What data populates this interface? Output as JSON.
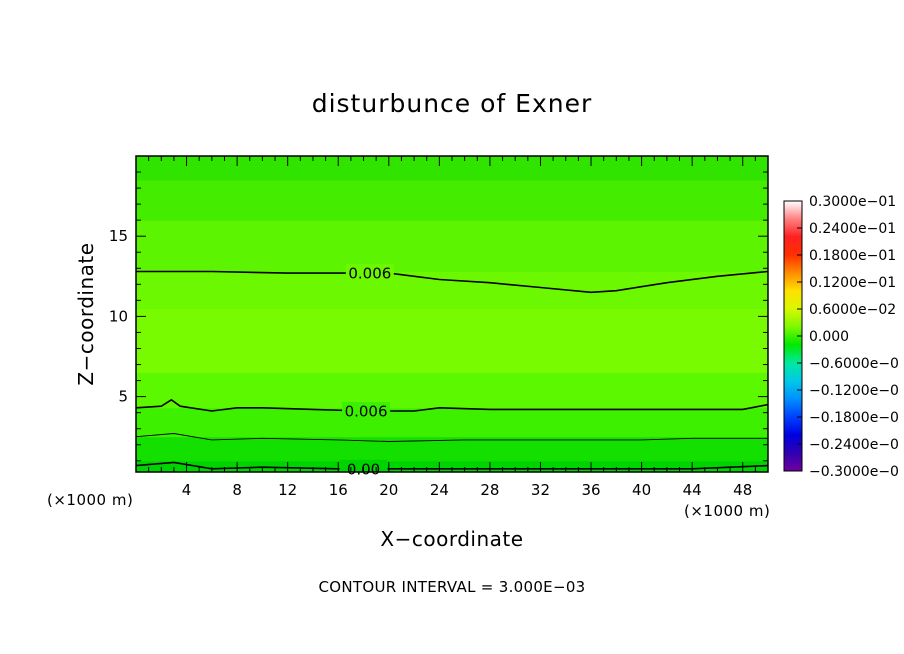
{
  "chart_data": {
    "type": "contour",
    "title": "disturbunce of Exner",
    "xlabel": "X−coordinate",
    "ylabel": "Z−coordinate",
    "x_unit": "(×1000 m)",
    "y_unit": "(×1000 m)",
    "xlim": [
      0,
      50
    ],
    "ylim": [
      0.3,
      20
    ],
    "x_ticks": [
      4,
      8,
      12,
      16,
      20,
      24,
      28,
      32,
      36,
      40,
      44,
      48
    ],
    "x_tick_labels": [
      "4",
      "8",
      "12",
      "16",
      "20",
      "24",
      "28",
      "32",
      "36",
      "40",
      "44",
      "48"
    ],
    "y_ticks": [
      5,
      10,
      15
    ],
    "y_tick_labels": [
      "5",
      "10",
      "15"
    ],
    "contour_interval": "CONTOUR INTERVAL = 3.000E−03",
    "contours": [
      {
        "level": 0.006,
        "label": "0.006",
        "label_at": 18.5,
        "points": [
          [
            0,
            12.8
          ],
          [
            6,
            12.8
          ],
          [
            12,
            12.7
          ],
          [
            16,
            12.7
          ],
          [
            20,
            12.7
          ],
          [
            24,
            12.3
          ],
          [
            28,
            12.1
          ],
          [
            32,
            11.8
          ],
          [
            36,
            11.5
          ],
          [
            38,
            11.6
          ],
          [
            42,
            12.1
          ],
          [
            46,
            12.5
          ],
          [
            50,
            12.8
          ]
        ]
      },
      {
        "level": 0.006,
        "label": "0.006",
        "label_at": 18.2,
        "points": [
          [
            0,
            4.3
          ],
          [
            2,
            4.4
          ],
          [
            2.8,
            4.8
          ],
          [
            3.5,
            4.4
          ],
          [
            6,
            4.1
          ],
          [
            8,
            4.3
          ],
          [
            10,
            4.3
          ],
          [
            14,
            4.2
          ],
          [
            18,
            4.1
          ],
          [
            22,
            4.1
          ],
          [
            24,
            4.3
          ],
          [
            28,
            4.2
          ],
          [
            32,
            4.2
          ],
          [
            36,
            4.2
          ],
          [
            40,
            4.2
          ],
          [
            44,
            4.2
          ],
          [
            48,
            4.2
          ],
          [
            50,
            4.5
          ]
        ]
      },
      {
        "level": 0.003,
        "label": "",
        "points": [
          [
            0,
            2.5
          ],
          [
            3,
            2.7
          ],
          [
            6,
            2.3
          ],
          [
            10,
            2.4
          ],
          [
            16,
            2.3
          ],
          [
            20,
            2.2
          ],
          [
            26,
            2.3
          ],
          [
            32,
            2.3
          ],
          [
            36,
            2.3
          ],
          [
            40,
            2.3
          ],
          [
            44,
            2.4
          ],
          [
            50,
            2.4
          ]
        ]
      },
      {
        "level": 0.0,
        "label": "0.00",
        "label_at": 18.0,
        "points": [
          [
            0,
            0.7
          ],
          [
            3,
            0.9
          ],
          [
            6,
            0.5
          ],
          [
            10,
            0.6
          ],
          [
            16,
            0.5
          ],
          [
            20,
            0.5
          ],
          [
            26,
            0.5
          ],
          [
            32,
            0.5
          ],
          [
            36,
            0.5
          ],
          [
            40,
            0.5
          ],
          [
            44,
            0.5
          ],
          [
            50,
            0.7
          ]
        ]
      }
    ],
    "fill_bands": [
      {
        "upper": 0.3,
        "color": "#00c800"
      },
      {
        "upper": 1.0,
        "color": "#00d400"
      },
      {
        "upper": 2.5,
        "color": "#14e000"
      },
      {
        "upper": 4.3,
        "color": "#3cf000"
      },
      {
        "upper": 6.5,
        "color": "#5cf800"
      },
      {
        "upper": 10.5,
        "color": "#78fa00"
      },
      {
        "upper": 12.8,
        "color": "#6cf800"
      },
      {
        "upper": 16.0,
        "color": "#5cf400"
      },
      {
        "upper": 18.5,
        "color": "#44ec00"
      },
      {
        "upper": 20.0,
        "color": "#30e400"
      }
    ],
    "colorbar": {
      "labels": [
        "0.3000e−01",
        "0.2400e−01",
        "0.1800e−01",
        "0.1200e−01",
        "0.6000e−02",
        "0.000",
        "−0.6000e−0",
        "−0.1200e−0",
        "−0.1800e−0",
        "−0.2400e−0",
        "−0.3000e−0"
      ],
      "colors": [
        "#ffffff",
        "#ff8080",
        "#ff2020",
        "#ff3000",
        "#ff8c00",
        "#ffe000",
        "#d8f800",
        "#7cf800",
        "#00e800",
        "#00e8a0",
        "#00c8e8",
        "#0090ff",
        "#0040ff",
        "#0000e0",
        "#3000b0",
        "#7000a0"
      ]
    }
  }
}
